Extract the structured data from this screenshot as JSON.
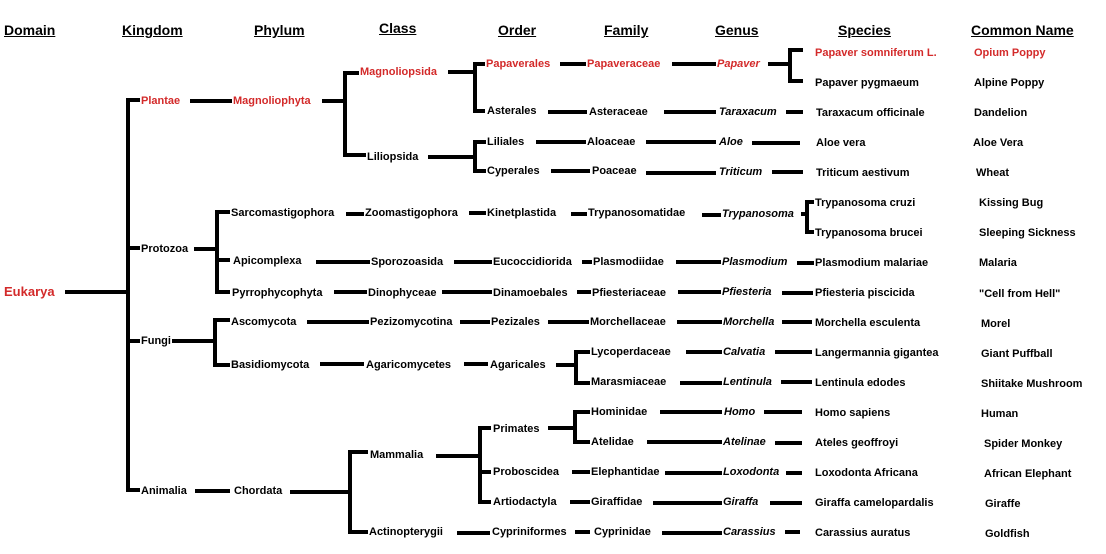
{
  "headers": {
    "domain": "Domain",
    "kingdom": "Kingdom",
    "phylum": "Phylum",
    "class": "Class",
    "order": "Order",
    "family": "Family",
    "genus": "Genus",
    "species": "Species",
    "common_name": "Common Name"
  },
  "domain": "Eukarya",
  "kingdoms": {
    "plantae": "Plantae",
    "protozoa": "Protozoa",
    "fungi": "Fungi",
    "animalia": "Animalia"
  },
  "phyla": {
    "magnoliophyta": "Magnoliophyta",
    "sarcomastigophora": "Sarcomastigophora",
    "apicomplexa": "Apicomplexa",
    "pyrrophycophyta": "Pyrrophycophyta",
    "ascomycota": "Ascomycota",
    "basidiomycota": "Basidiomycota",
    "chordata": "Chordata"
  },
  "classes": {
    "magnoliopsida": "Magnoliopsida",
    "liliopsida": "Liliopsida",
    "zoomastigophora": "Zoomastigophora",
    "sporozoasida": "Sporozoasida",
    "dinophyceae": "Dinophyceae",
    "pezizomycotina": "Pezizomycotina",
    "agaricomycetes": "Agaricomycetes",
    "mammalia": "Mammalia",
    "actinopterygii": "Actinopterygii"
  },
  "orders": {
    "papaverales": "Papaverales",
    "asterales": "Asterales",
    "liliales": "Liliales",
    "cyperales": "Cyperales",
    "kinetplastida": "Kinetplastida",
    "eucoccidiorida": "Eucoccidiorida",
    "dinamoebales": "Dinamoebales",
    "pezizales": "Pezizales",
    "agaricales": "Agaricales",
    "primates": "Primates",
    "proboscidea": "Proboscidea",
    "artiodactyla": "Artiodactyla",
    "cypriniformes": "Cypriniformes"
  },
  "families": {
    "papaveraceae": "Papaveraceae",
    "asteraceae": "Asteraceae",
    "aloaceae": "Aloaceae",
    "poaceae": "Poaceae",
    "trypanosomatidae": "Trypanosomatidae",
    "plasmodiidae": "Plasmodiidae",
    "pfiesteriaceae": "Pfiesteriaceae",
    "morchellaceae": "Morchellaceae",
    "lycoperdaceae": "Lycoperdaceae",
    "marasmiaceae": "Marasmiaceae",
    "hominidae": "Hominidae",
    "atelidae": "Atelidae",
    "elephantidae": "Elephantidae",
    "giraffidae": "Giraffidae",
    "cyprinidae": "Cyprinidae"
  },
  "genera": {
    "papaver": "Papaver",
    "taraxacum": "Taraxacum",
    "aloe": "Aloe",
    "triticum": "Triticum",
    "trypanosoma": "Trypanosoma",
    "plasmodium": "Plasmodium",
    "pfiesteria": "Pfiesteria",
    "morchella": "Morchella",
    "calvatia": "Calvatia",
    "lentinula": "Lentinula",
    "homo": "Homo",
    "atelinae": "Atelinae",
    "loxodonta": "Loxodonta",
    "giraffa": "Giraffa",
    "carassius": "Carassius"
  },
  "species": [
    {
      "id": "opium",
      "species": "Papaver somniferum L.",
      "common": "Opium Poppy"
    },
    {
      "id": "alpine",
      "species": "Papaver pygmaeum",
      "common": "Alpine Poppy"
    },
    {
      "id": "dandelion",
      "species": "Taraxacum officinale",
      "common": "Dandelion"
    },
    {
      "id": "aloe",
      "species": "Aloe vera",
      "common": "Aloe Vera"
    },
    {
      "id": "wheat",
      "species": "Triticum aestivum",
      "common": "Wheat"
    },
    {
      "id": "kissing",
      "species": "Trypanosoma cruzi",
      "common": "Kissing Bug"
    },
    {
      "id": "sleeping",
      "species": "Trypanosoma brucei",
      "common": "Sleeping Sickness"
    },
    {
      "id": "malaria",
      "species": "Plasmodium malariae",
      "common": "Malaria"
    },
    {
      "id": "hell",
      "species": "Pfiesteria piscicida",
      "common": "\"Cell from Hell\""
    },
    {
      "id": "morel",
      "species": "Morchella esculenta",
      "common": "Morel"
    },
    {
      "id": "puffball",
      "species": "Langermannia gigantea",
      "common": "Giant Puffball"
    },
    {
      "id": "shiitake",
      "species": "Lentinula edodes",
      "common": "Shiitake Mushroom"
    },
    {
      "id": "human",
      "species": "Homo sapiens",
      "common": "Human"
    },
    {
      "id": "monkey",
      "species": "Ateles geoffroyi",
      "common": "Spider Monkey"
    },
    {
      "id": "elephant",
      "species": "Loxodonta Africana",
      "common": "African Elephant"
    },
    {
      "id": "giraffe",
      "species": "Giraffa camelopardalis",
      "common": "Giraffe"
    },
    {
      "id": "goldfish",
      "species": "Carassius auratus",
      "common": "Goldfish"
    }
  ],
  "colors": {
    "highlight": "#d32a2a",
    "text": "#000000",
    "background": "#ffffff"
  }
}
